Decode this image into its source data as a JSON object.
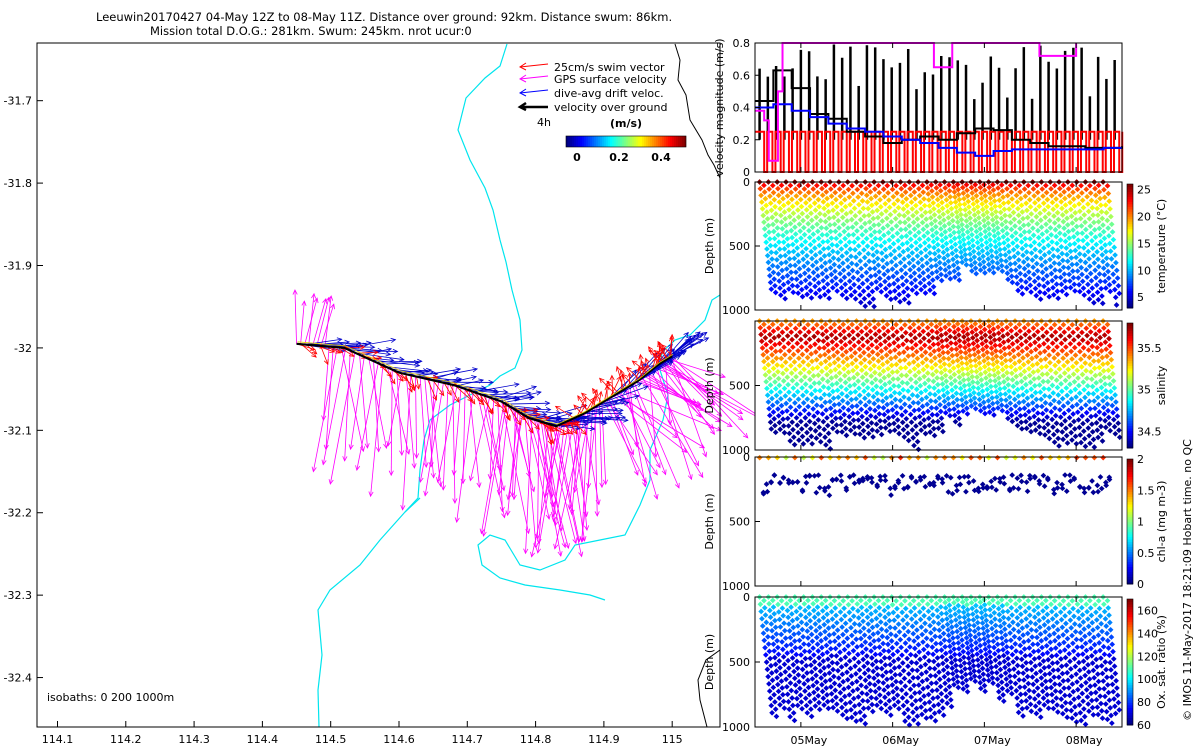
{
  "header": {
    "title_line1": "Leeuwin20170427 04-May 12Z to 08-May 11Z. Distance over ground: 92km. Distance swum: 86km.",
    "title_line2": "Mission total D.O.G.: 281km. Swum: 245km. nrot ucur:0"
  },
  "side_note": "© IMOS 11-May-2017 18:21:09 Hobart time. no QC",
  "map": {
    "legend": [
      "25cm/s swim vector",
      "GPS surface velocity",
      "dive-avg drift veloc.",
      "velocity over ground"
    ],
    "legend_colors": [
      "#ff0000",
      "#ff00ff",
      "#0000ff",
      "#000000"
    ],
    "interval_label": "4h",
    "colorbar_title": "(m/s)",
    "colorbar_ticks": [
      "0",
      "0.2",
      "0.4"
    ],
    "isobaths_label": "isobaths: 0   200  1000m",
    "x_ticks": [
      "114.1",
      "114.2",
      "114.3",
      "114.4",
      "114.5",
      "114.6",
      "114.7",
      "114.8",
      "114.9",
      "115"
    ],
    "y_ticks": [
      "-31.7",
      "-31.8",
      "-31.9",
      "-32",
      "-32.1",
      "-32.2",
      "-32.3",
      "-32.4"
    ]
  },
  "panels": {
    "x_ticks": [
      "05May",
      "06May",
      "07May",
      "08May"
    ],
    "velocity": {
      "ylabel": "velocity magnitude (m/s)",
      "y_ticks": [
        "0",
        "0.2",
        "0.4",
        "0.6",
        "0.8"
      ]
    },
    "temperature": {
      "ylabel": "Depth (m)",
      "clabel": "temperature (°C)",
      "y_ticks": [
        "0",
        "500",
        "1000"
      ],
      "c_ticks": [
        "5",
        "10",
        "15",
        "20",
        "25"
      ]
    },
    "salinity": {
      "ylabel": "Depth (m)",
      "clabel": "salinity",
      "y_ticks": [
        "500",
        "1000"
      ],
      "c_ticks": [
        "34.5",
        "35",
        "35.5"
      ]
    },
    "chla": {
      "ylabel": "Depth (m)",
      "clabel": "chl-a (mg m-3)",
      "y_ticks": [
        "0",
        "500",
        "1000"
      ],
      "c_ticks": [
        "0",
        "0.5",
        "1",
        "1.5",
        "2"
      ]
    },
    "oxygen": {
      "ylabel": "Depth (m)",
      "clabel": "Ox. sat. ratio (%)",
      "y_ticks": [
        "0",
        "500",
        "1000"
      ],
      "c_ticks": [
        "60",
        "80",
        "100",
        "120",
        "140",
        "160"
      ]
    }
  },
  "chart_data": [
    {
      "type": "scatter",
      "title": "Leeuwin20170427 04-May 12Z to 08-May 11Z. Distance over ground: 92km. Distance swum: 86km.",
      "xlim": [
        114.07,
        115.07
      ],
      "ylim": [
        -32.46,
        -31.63
      ],
      "track": {
        "lon": [
          114.45,
          114.52,
          114.6,
          114.68,
          114.75,
          114.79,
          114.83,
          114.87,
          114.91,
          114.95,
          114.98,
          115.0
        ],
        "lat": [
          -31.995,
          -32.0,
          -32.03,
          -32.045,
          -32.065,
          -32.085,
          -32.095,
          -32.08,
          -32.06,
          -32.04,
          -32.02,
          -32.01
        ]
      },
      "series": [
        {
          "name": "25cm/s swim vector",
          "color": "#ff0000"
        },
        {
          "name": "GPS surface velocity",
          "color": "#ff00ff"
        },
        {
          "name": "dive-avg drift veloc.",
          "color": "#0000ff"
        },
        {
          "name": "velocity over ground",
          "color": "#000000"
        }
      ]
    },
    {
      "type": "line",
      "ylabel": "velocity magnitude (m/s)",
      "xlim": [
        4.5,
        8.5
      ],
      "ylim": [
        0,
        0.8
      ],
      "series": [
        {
          "name": "velocity over ground",
          "color": "#000000",
          "x": [
            4.5,
            4.7,
            4.9,
            5.1,
            5.3,
            5.5,
            5.7,
            5.9,
            6.1,
            6.3,
            6.5,
            6.7,
            6.9,
            7.1,
            7.3,
            7.5,
            7.7,
            7.9,
            8.1,
            8.3,
            8.5
          ],
          "y": [
            0.44,
            0.63,
            0.52,
            0.36,
            0.33,
            0.25,
            0.22,
            0.18,
            0.2,
            0.22,
            0.2,
            0.24,
            0.27,
            0.26,
            0.2,
            0.18,
            0.16,
            0.16,
            0.15,
            0.15,
            0.16
          ]
        },
        {
          "name": "dive-avg drift veloc.",
          "color": "#0000ff",
          "x": [
            4.5,
            4.7,
            4.9,
            5.1,
            5.3,
            5.5,
            5.7,
            5.9,
            6.1,
            6.3,
            6.5,
            6.7,
            6.9,
            7.1,
            7.3,
            7.5,
            7.7,
            7.9,
            8.1,
            8.3,
            8.5
          ],
          "y": [
            0.4,
            0.42,
            0.38,
            0.34,
            0.3,
            0.27,
            0.25,
            0.22,
            0.2,
            0.18,
            0.15,
            0.12,
            0.1,
            0.13,
            0.14,
            0.14,
            0.14,
            0.14,
            0.14,
            0.15,
            0.15
          ]
        },
        {
          "name": "swim speed",
          "color": "#ff0000",
          "x": [
            4.5,
            8.5
          ],
          "y": [
            0.25,
            0.25
          ]
        },
        {
          "name": "GPS surface velocity",
          "color": "#ff00ff",
          "x": [
            4.5,
            4.6,
            4.65,
            4.7,
            4.75,
            4.8,
            4.85,
            6.4,
            6.45,
            6.6,
            6.65,
            7.5,
            7.6,
            7.9,
            8.0
          ],
          "y": [
            0.38,
            0.32,
            0.07,
            0.07,
            0.5,
            0.8,
            0.8,
            0.8,
            0.65,
            0.65,
            0.8,
            0.8,
            0.72,
            0.72,
            0.8
          ]
        }
      ]
    },
    {
      "type": "scatter",
      "name": "temperature",
      "xlim": [
        4.5,
        8.5
      ],
      "ylim": [
        1000,
        0
      ],
      "clim": [
        3,
        26
      ],
      "ylabel": "Depth (m)"
    },
    {
      "type": "scatter",
      "name": "salinity",
      "xlim": [
        4.5,
        8.5
      ],
      "ylim": [
        1000,
        0
      ],
      "clim": [
        34.3,
        35.8
      ],
      "ylabel": "Depth (m)"
    },
    {
      "type": "scatter",
      "name": "chl-a",
      "xlim": [
        4.5,
        8.5
      ],
      "ylim": [
        1000,
        0
      ],
      "clim": [
        0,
        2
      ],
      "ylabel": "Depth (m)"
    },
    {
      "type": "scatter",
      "name": "oxygen",
      "xlim": [
        4.5,
        8.5
      ],
      "ylim": [
        1000,
        0
      ],
      "clim": [
        60,
        170
      ],
      "ylabel": "Depth (m)"
    }
  ]
}
